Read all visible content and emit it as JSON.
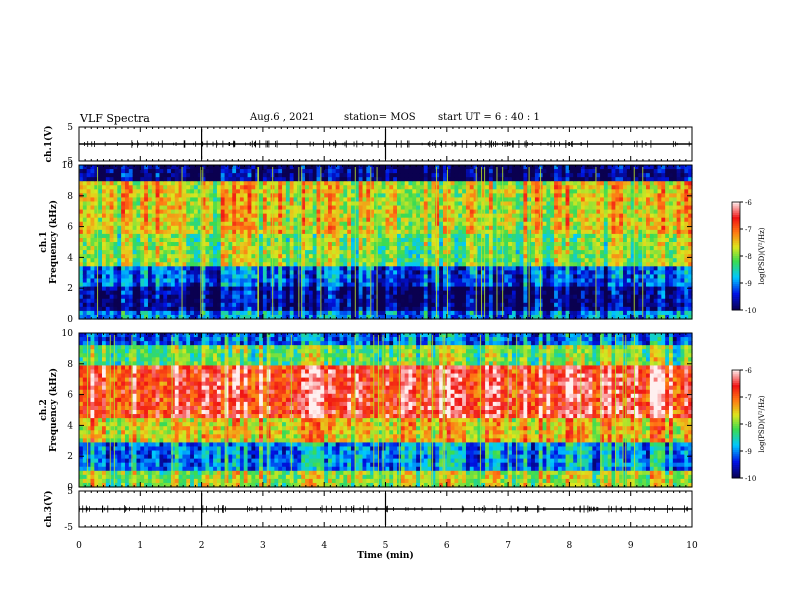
{
  "header": {
    "title": "VLF Spectra",
    "date": "Aug.6  , 2021",
    "station": "station= MOS",
    "start": "start  UT  =   6  : 40 : 1"
  },
  "chart_data": [
    {
      "type": "line",
      "panel": "ch1-waveform",
      "ylabel": "ch.1(V)",
      "ylim": [
        -5,
        5
      ],
      "yticks": [
        "5",
        "-5"
      ],
      "xlim": [
        0,
        10
      ],
      "baseline": 0,
      "grid": false
    },
    {
      "type": "heatmap",
      "panel": "ch1-spectrogram",
      "ylabel": "ch.1",
      "ylabel2": "Frequency (kHz)",
      "ylim": [
        0,
        10
      ],
      "yticks": [
        "0",
        "2",
        "4",
        "6",
        "8",
        "10"
      ],
      "xlim": [
        0,
        10
      ],
      "colorbar": {
        "label": "log(PSD)(V²/Hz)",
        "range": [
          -10,
          -6
        ],
        "ticks": [
          "-6",
          "-7",
          "-8",
          "-9",
          "-10"
        ]
      },
      "bands": [
        {
          "fmin": 0.0,
          "fmax": 0.5,
          "logpsd": -9.0
        },
        {
          "fmin": 0.5,
          "fmax": 2.0,
          "logpsd": -9.8
        },
        {
          "fmin": 2.0,
          "fmax": 3.5,
          "logpsd": -9.2
        },
        {
          "fmin": 3.5,
          "fmax": 5.5,
          "logpsd": -8.0
        },
        {
          "fmin": 5.5,
          "fmax": 9.0,
          "logpsd": -7.6
        },
        {
          "fmin": 9.0,
          "fmax": 10.0,
          "logpsd": -9.9
        }
      ]
    },
    {
      "type": "heatmap",
      "panel": "ch2-spectrogram",
      "ylabel": "ch.2",
      "ylabel2": "Frequency (kHz)",
      "ylim": [
        0,
        10
      ],
      "yticks": [
        "0",
        "2",
        "4",
        "6",
        "8",
        "10"
      ],
      "xlim": [
        0,
        10
      ],
      "colorbar": {
        "label": "log(PSD)(V²/Hz)",
        "range": [
          -10,
          -6
        ],
        "ticks": [
          "-6",
          "-7",
          "-8",
          "-9",
          "-10"
        ]
      },
      "bands": [
        {
          "fmin": 0.0,
          "fmax": 1.0,
          "logpsd": -7.8
        },
        {
          "fmin": 1.0,
          "fmax": 3.0,
          "logpsd": -8.9
        },
        {
          "fmin": 3.0,
          "fmax": 4.5,
          "logpsd": -7.4
        },
        {
          "fmin": 4.5,
          "fmax": 8.0,
          "logpsd": -6.5
        },
        {
          "fmin": 8.0,
          "fmax": 9.2,
          "logpsd": -8.0
        },
        {
          "fmin": 9.2,
          "fmax": 10.0,
          "logpsd": -9.0
        }
      ]
    },
    {
      "type": "line",
      "panel": "ch3-waveform",
      "ylabel": "ch.3(V)",
      "ylim": [
        -5,
        5
      ],
      "yticks": [
        "5",
        "-5"
      ],
      "xlim": [
        0,
        10
      ],
      "xlabel": "Time  (min)",
      "xticks": [
        "0",
        "1",
        "2",
        "3",
        "4",
        "5",
        "6",
        "7",
        "8",
        "9",
        "10"
      ],
      "baseline": 0,
      "grid": false
    }
  ]
}
